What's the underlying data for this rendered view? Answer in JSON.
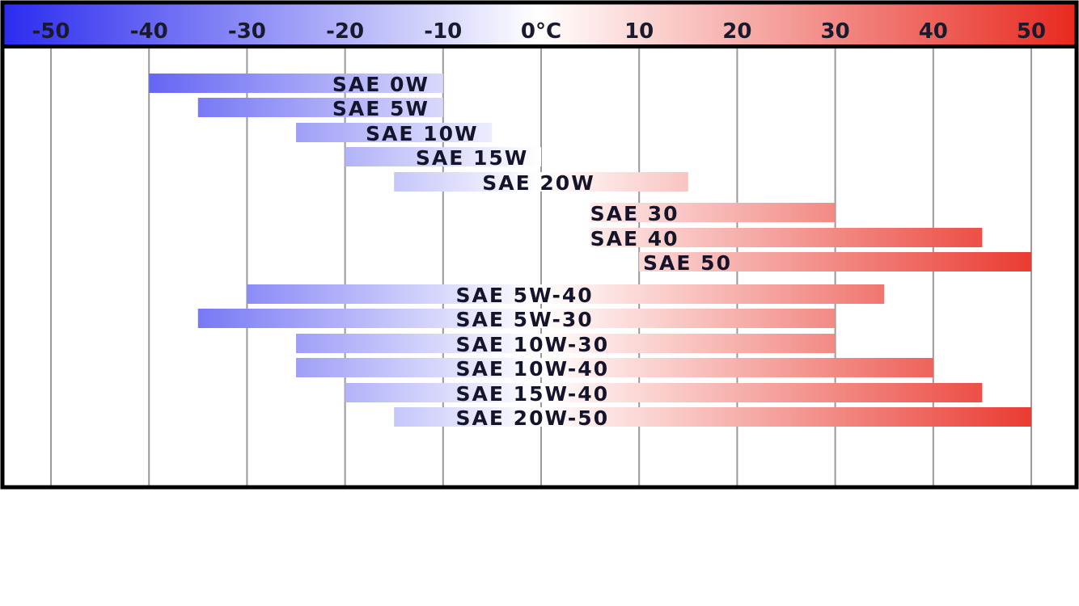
{
  "chart_data": {
    "type": "bar",
    "orientation": "horizontal-range",
    "x_unit": "°C",
    "xlim": [
      -55,
      55
    ],
    "x_ticks": [
      -50,
      -40,
      -30,
      -20,
      -10,
      0,
      10,
      20,
      30,
      40,
      50
    ],
    "x_tick_labels": [
      "-50",
      "-40",
      "-30",
      "-20",
      "-10",
      "0°C",
      "10",
      "20",
      "30",
      "40",
      "50"
    ],
    "grid": true,
    "colors": {
      "cold": "#2a2af0",
      "neutral": "#ffffff",
      "hot": "#e8281e"
    },
    "bars": [
      {
        "label": "SAE 0W",
        "from": -40,
        "to": -10
      },
      {
        "label": "SAE 5W",
        "from": -35,
        "to": -10
      },
      {
        "label": "SAE 10W",
        "from": -25,
        "to": -5
      },
      {
        "label": "SAE 15W",
        "from": -20,
        "to": 0
      },
      {
        "label": "SAE 20W",
        "from": -15,
        "to": 15
      },
      {
        "label": "SAE 30",
        "from": 5,
        "to": 30
      },
      {
        "label": "SAE 40",
        "from": 5,
        "to": 45
      },
      {
        "label": "SAE 50",
        "from": 10,
        "to": 50
      },
      {
        "label": "SAE 5W-40",
        "from": -30,
        "to": 35
      },
      {
        "label": "SAE 5W-30",
        "from": -35,
        "to": 30
      },
      {
        "label": "SAE 10W-30",
        "from": -25,
        "to": 30
      },
      {
        "label": "SAE 10W-40",
        "from": -25,
        "to": 40
      },
      {
        "label": "SAE 15W-40",
        "from": -20,
        "to": 45
      },
      {
        "label": "SAE 20W-50",
        "from": -15,
        "to": 50
      }
    ]
  }
}
